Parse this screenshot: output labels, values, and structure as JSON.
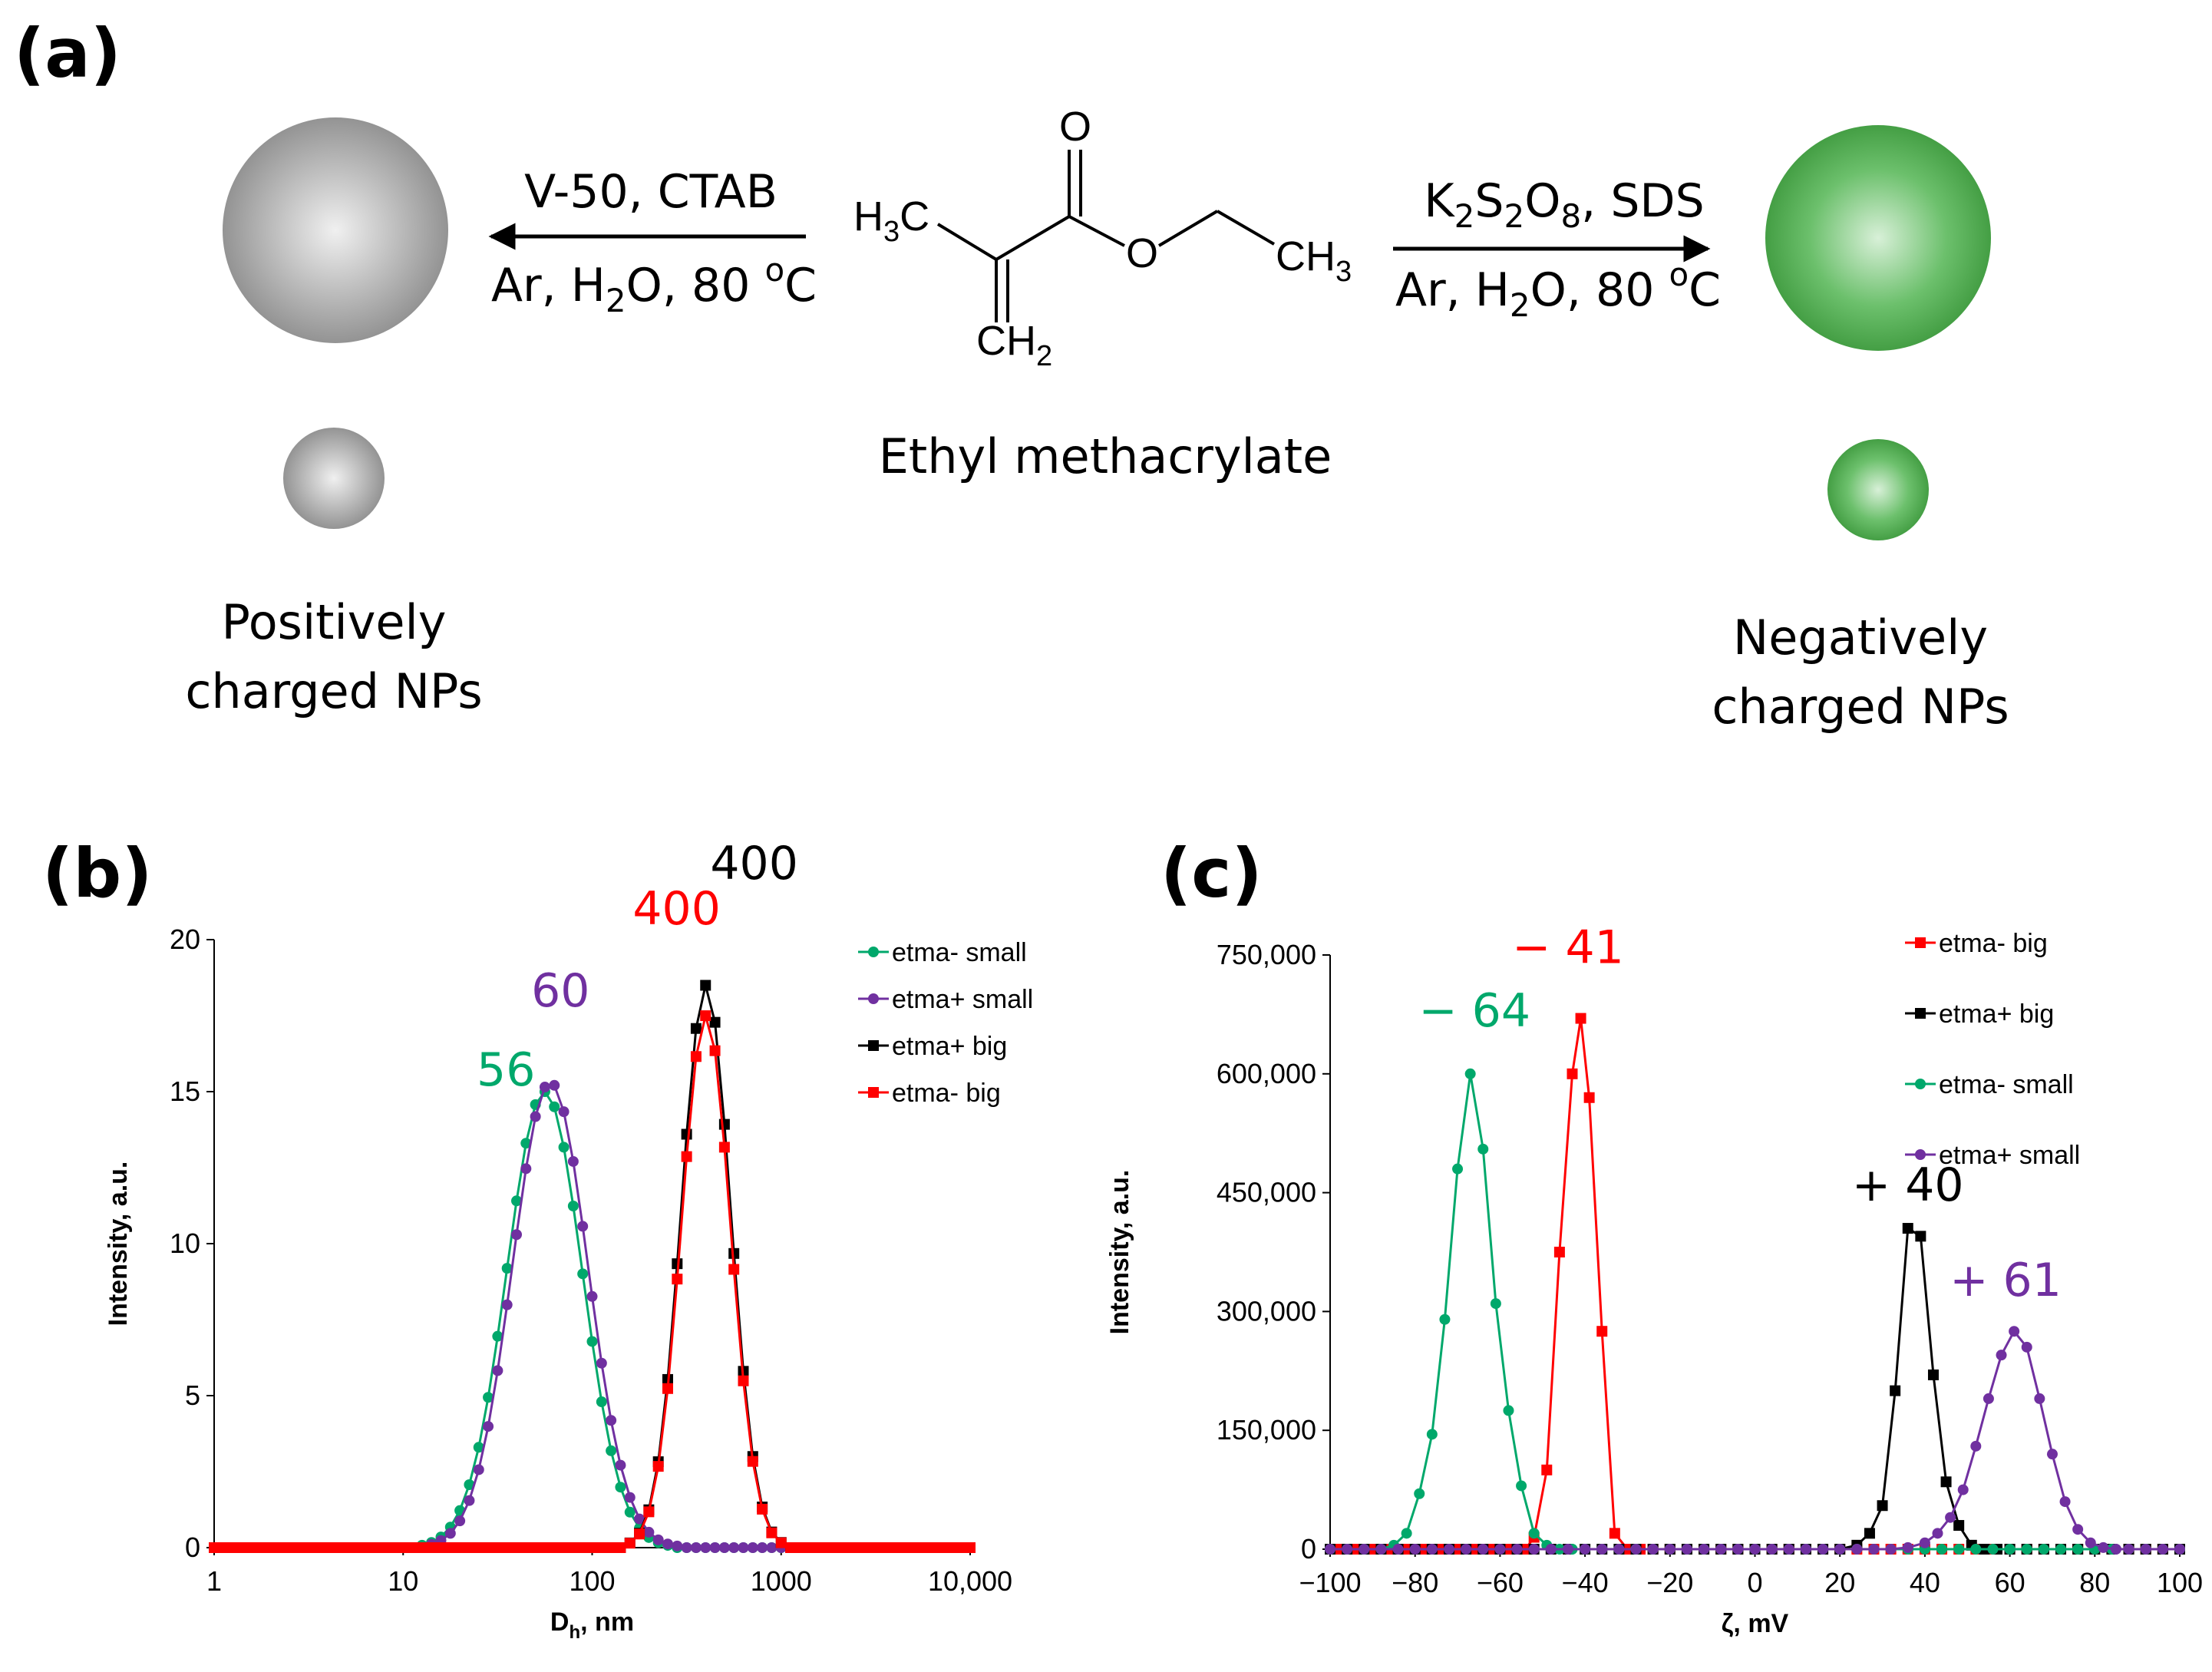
{
  "panels": {
    "a": "(a)",
    "b": "(b)",
    "c": "(c)"
  },
  "scheme": {
    "left_conditions": {
      "line1": "V-50, CTAB",
      "line2_pre": "Ar, H",
      "line2_sub": "2",
      "line2_mid": "O, 80 ",
      "line2_sup": "o",
      "line2_end": "C"
    },
    "right_conditions": {
      "line1_parts": [
        {
          "t": "K",
          "s": ""
        },
        {
          "t": "2",
          "s": "sub"
        },
        {
          "t": "S",
          "s": ""
        },
        {
          "t": "2",
          "s": "sub"
        },
        {
          "t": "O",
          "s": ""
        },
        {
          "t": "8",
          "s": "sub"
        },
        {
          "t": ", SDS",
          "s": ""
        }
      ],
      "line2_pre": "Ar, H",
      "line2_sub": "2",
      "line2_mid": "O, 80 ",
      "line2_sup": "o",
      "line2_end": "C"
    },
    "molecule": {
      "atom_O_top": "O",
      "atom_O_ester": "O",
      "h3c": "H",
      "h3c_sub": "3",
      "h3c_end": "C",
      "ch3": "CH",
      "ch3_sub": "3",
      "ch2": "CH",
      "ch2_sub": "2",
      "name": "Ethyl methacrylate"
    },
    "left_caption": {
      "line1": "Positively",
      "line2": "charged NPs"
    },
    "right_caption": {
      "line1": "Negatively",
      "line2": "charged NPs"
    },
    "colors": {
      "gray_particle": "#9a9a9a",
      "green_particle": "#4aa84a"
    }
  },
  "chart_data": [
    {
      "type": "line",
      "panel": "b",
      "xscale": "log",
      "xlim": [
        1,
        10000
      ],
      "ylim": [
        0,
        20
      ],
      "xlabel": "D",
      "xlabel_sub": "h",
      "xlabel_end": ", nm",
      "ylabel": "Intensity, a.u.",
      "xticks": [
        {
          "v": 1,
          "label": "1"
        },
        {
          "v": 10,
          "label": "10"
        },
        {
          "v": 100,
          "label": "100"
        },
        {
          "v": 1000,
          "label": "1000"
        },
        {
          "v": 10000,
          "label": "10,000"
        }
      ],
      "yticks": [
        {
          "v": 0,
          "label": "0"
        },
        {
          "v": 5,
          "label": "5"
        },
        {
          "v": 10,
          "label": "10"
        },
        {
          "v": 15,
          "label": "15"
        },
        {
          "v": 20,
          "label": "20"
        }
      ],
      "legend_position": "top-right",
      "series": [
        {
          "name": "etma- small",
          "color": "#00a86b",
          "marker": "circle",
          "gauss": {
            "center_log": 1.748,
            "width_log": 0.2,
            "peak": 15.0
          }
        },
        {
          "name": "etma+ small",
          "color": "#7030a0",
          "marker": "circle",
          "gauss": {
            "center_log": 1.778,
            "width_log": 0.2,
            "peak": 15.3
          }
        },
        {
          "name": "etma+ big",
          "color": "#000000",
          "marker": "square",
          "gauss": {
            "center_log": 2.602,
            "width_log": 0.13,
            "peak": 18.5
          }
        },
        {
          "name": "etma- big",
          "color": "#ff0000",
          "marker": "square",
          "gauss": {
            "center_log": 2.602,
            "width_log": 0.13,
            "peak": 17.5
          }
        }
      ],
      "annotations": [
        {
          "text": "56",
          "color": "#00a86b",
          "x": 35,
          "y": 15.2
        },
        {
          "text": "60",
          "color": "#7030a0",
          "x": 68,
          "y": 17.8
        },
        {
          "text": "400",
          "color": "#ff0000",
          "x": 280,
          "y": 20.5
        },
        {
          "text": "400",
          "color": "#000000",
          "x": 720,
          "y": 22.0
        }
      ]
    },
    {
      "type": "line",
      "panel": "c",
      "xscale": "linear",
      "xlim": [
        -100,
        100
      ],
      "ylim": [
        0,
        750000
      ],
      "xlabel": "ζ, mV",
      "ylabel": "Intensity, a.u.",
      "xticks": [
        {
          "v": -100,
          "label": "−100"
        },
        {
          "v": -80,
          "label": "−80"
        },
        {
          "v": -60,
          "label": "−60"
        },
        {
          "v": -40,
          "label": "−40"
        },
        {
          "v": -20,
          "label": "−20"
        },
        {
          "v": 0,
          "label": "0"
        },
        {
          "v": 20,
          "label": "20"
        },
        {
          "v": 40,
          "label": "40"
        },
        {
          "v": 60,
          "label": "60"
        },
        {
          "v": 80,
          "label": "80"
        },
        {
          "v": 100,
          "label": "100"
        }
      ],
      "yticks": [
        {
          "v": 0,
          "label": "0"
        },
        {
          "v": 150000,
          "label": "150,000"
        },
        {
          "v": 300000,
          "label": "300,000"
        },
        {
          "v": 450000,
          "label": "450,000"
        },
        {
          "v": 600000,
          "label": "600,000"
        },
        {
          "v": 750000,
          "label": "750,000"
        }
      ],
      "legend_position": "top-right",
      "series": [
        {
          "name": "etma- big",
          "color": "#ff0000",
          "marker": "square",
          "x": [
            -100,
            -98,
            -96,
            -94,
            -92,
            -90,
            -88,
            -86,
            -84,
            -82,
            -80,
            -78,
            -76,
            -74,
            -72,
            -70,
            -68,
            -66,
            -64,
            -62,
            -60,
            -58,
            -56,
            -54,
            -52,
            -49,
            -46,
            -43,
            -41,
            -39,
            -36,
            -33,
            -30,
            -27,
            -24,
            -20,
            -16,
            -12,
            -8,
            -4,
            0,
            4,
            8,
            12,
            16,
            20,
            24,
            28,
            32,
            36,
            40,
            44,
            48,
            52,
            56,
            60,
            64,
            68,
            72,
            76,
            80,
            84,
            88,
            92,
            96,
            100
          ],
          "y": [
            0,
            0,
            0,
            0,
            0,
            0,
            0,
            0,
            0,
            0,
            0,
            0,
            0,
            0,
            0,
            0,
            0,
            0,
            0,
            0,
            0,
            0,
            0,
            0,
            15000,
            100000,
            375000,
            600000,
            670000,
            570000,
            275000,
            20000,
            0,
            0,
            0,
            0,
            0,
            0,
            0,
            0,
            0,
            0,
            0,
            0,
            0,
            0,
            0,
            0,
            0,
            0,
            0,
            0,
            0,
            0,
            0,
            0,
            0,
            0,
            0,
            0,
            0,
            0,
            0,
            0,
            0,
            0
          ]
        },
        {
          "name": "etma+ big",
          "color": "#000000",
          "marker": "square",
          "x": [
            -100,
            -96,
            -92,
            -88,
            -84,
            -80,
            -76,
            -72,
            -68,
            -64,
            -60,
            -56,
            -52,
            -48,
            -44,
            -40,
            -36,
            -32,
            -28,
            -24,
            -20,
            -16,
            -12,
            -8,
            -4,
            0,
            4,
            8,
            12,
            16,
            20,
            24,
            27,
            30,
            33,
            36,
            39,
            42,
            45,
            48,
            51,
            54,
            57,
            60,
            64,
            68,
            72,
            76,
            80,
            84,
            88,
            92,
            96,
            100
          ],
          "y": [
            0,
            0,
            0,
            0,
            0,
            0,
            0,
            0,
            0,
            0,
            0,
            0,
            0,
            0,
            0,
            0,
            0,
            0,
            0,
            0,
            0,
            0,
            0,
            0,
            0,
            0,
            0,
            0,
            0,
            0,
            0,
            5000,
            20000,
            55000,
            200000,
            405000,
            395000,
            220000,
            85000,
            30000,
            5000,
            0,
            0,
            0,
            0,
            0,
            0,
            0,
            0,
            0,
            0,
            0,
            0,
            0
          ]
        },
        {
          "name": "etma- small",
          "color": "#00a86b",
          "marker": "circle",
          "x": [
            -100,
            -96,
            -92,
            -88,
            -85,
            -82,
            -79,
            -76,
            -73,
            -70,
            -67,
            -64,
            -61,
            -58,
            -55,
            -52,
            -49,
            -46,
            -43,
            -40,
            -36,
            -32,
            -28,
            -24,
            -20,
            -16,
            -12,
            -8,
            -4,
            0,
            4,
            8,
            12,
            16,
            20,
            24,
            28,
            32,
            36,
            40,
            44,
            48,
            52,
            56,
            60,
            64,
            68,
            72,
            76,
            80,
            84,
            88,
            92,
            96,
            100
          ],
          "y": [
            0,
            0,
            0,
            0,
            5000,
            20000,
            70000,
            145000,
            290000,
            480000,
            600000,
            505000,
            310000,
            175000,
            80000,
            20000,
            5000,
            0,
            0,
            0,
            0,
            0,
            0,
            0,
            0,
            0,
            0,
            0,
            0,
            0,
            0,
            0,
            0,
            0,
            0,
            0,
            0,
            0,
            0,
            0,
            0,
            0,
            0,
            0,
            0,
            0,
            0,
            0,
            0,
            0,
            0,
            0,
            0,
            0,
            0
          ]
        },
        {
          "name": "etma+ small",
          "color": "#7030a0",
          "marker": "circle",
          "x": [
            -100,
            -96,
            -92,
            -88,
            -84,
            -80,
            -76,
            -72,
            -68,
            -64,
            -60,
            -56,
            -52,
            -48,
            -44,
            -40,
            -36,
            -32,
            -28,
            -24,
            -20,
            -16,
            -12,
            -8,
            -4,
            0,
            4,
            8,
            12,
            16,
            20,
            24,
            28,
            32,
            36,
            40,
            43,
            46,
            49,
            52,
            55,
            58,
            61,
            64,
            67,
            70,
            73,
            76,
            79,
            82,
            85,
            88,
            92,
            96,
            100
          ],
          "y": [
            0,
            0,
            0,
            0,
            0,
            0,
            0,
            0,
            0,
            0,
            0,
            0,
            0,
            0,
            0,
            0,
            0,
            0,
            0,
            0,
            0,
            0,
            0,
            0,
            0,
            0,
            0,
            0,
            0,
            0,
            0,
            0,
            0,
            0,
            2000,
            8000,
            20000,
            40000,
            75000,
            130000,
            190000,
            245000,
            275000,
            255000,
            190000,
            120000,
            60000,
            25000,
            8000,
            2000,
            0,
            0,
            0,
            0,
            0
          ]
        }
      ],
      "annotations": [
        {
          "text": "− 64",
          "color": "#00a86b",
          "x": -66,
          "y": 660000
        },
        {
          "text": "− 41",
          "color": "#ff0000",
          "x": -44,
          "y": 740000
        },
        {
          "text": "+ 40",
          "color": "#000000",
          "x": 36,
          "y": 440000
        },
        {
          "text": "+ 61",
          "color": "#7030a0",
          "x": 59,
          "y": 320000
        }
      ]
    }
  ]
}
